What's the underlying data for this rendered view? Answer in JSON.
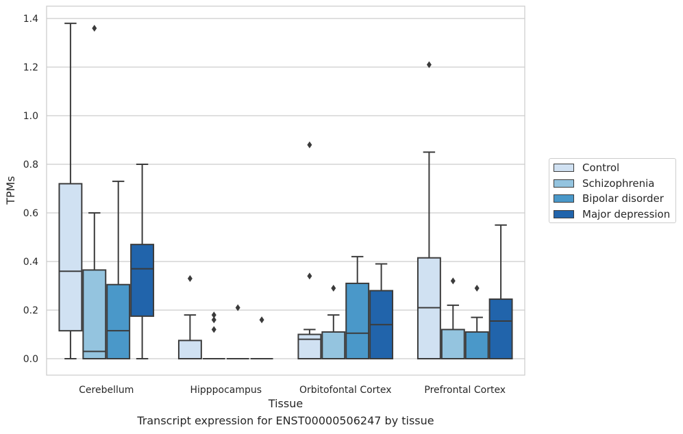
{
  "chart_data": {
    "type": "box",
    "caption": "Transcript expression for ENST00000506247 by tissue",
    "xlabel": "Tissue",
    "ylabel": "TPMs",
    "ylim": [
      -0.065,
      1.45
    ],
    "yticks": [
      "0.0",
      "0.2",
      "0.4",
      "0.6",
      "0.8",
      "1.0",
      "1.2",
      "1.4"
    ],
    "ytick_values": [
      0,
      0.2,
      0.4,
      0.6,
      0.8,
      1.0,
      1.2,
      1.4
    ],
    "grid": "horizontal",
    "legend_position": "right",
    "categories": [
      "Cerebellum",
      "Hipppocampus",
      "Orbitofontal Cortex",
      "Prefrontal Cortex"
    ],
    "series": [
      {
        "name": "Control",
        "color": "#d0e1f2",
        "boxes": [
          {
            "q1": 0.115,
            "median": 0.36,
            "q3": 0.72,
            "whislo": 0.0,
            "whishi": 1.38,
            "fliers": []
          },
          {
            "q1": 0.0,
            "median": 0.0,
            "q3": 0.075,
            "whislo": 0.0,
            "whishi": 0.18,
            "fliers": [
              0.33
            ]
          },
          {
            "q1": 0.0,
            "median": 0.08,
            "q3": 0.1,
            "whislo": 0.0,
            "whishi": 0.12,
            "fliers": [
              0.34,
              0.88
            ]
          },
          {
            "q1": 0.0,
            "median": 0.21,
            "q3": 0.415,
            "whislo": 0.0,
            "whishi": 0.85,
            "fliers": [
              1.21
            ]
          }
        ]
      },
      {
        "name": "Schizophrenia",
        "color": "#94c4df",
        "boxes": [
          {
            "q1": 0.0,
            "median": 0.03,
            "q3": 0.365,
            "whislo": 0.0,
            "whishi": 0.6,
            "fliers": [
              1.36
            ]
          },
          {
            "q1": 0.0,
            "median": 0.0,
            "q3": 0.0,
            "whislo": 0.0,
            "whishi": 0.0,
            "fliers": [
              0.12,
              0.16,
              0.18
            ]
          },
          {
            "q1": 0.0,
            "median": 0.0,
            "q3": 0.11,
            "whislo": 0.0,
            "whishi": 0.18,
            "fliers": [
              0.29
            ]
          },
          {
            "q1": 0.0,
            "median": 0.0,
            "q3": 0.12,
            "whislo": 0.0,
            "whishi": 0.22,
            "fliers": [
              0.32
            ]
          }
        ]
      },
      {
        "name": "Bipolar disorder",
        "color": "#4a98c9",
        "boxes": [
          {
            "q1": 0.0,
            "median": 0.115,
            "q3": 0.305,
            "whislo": 0.0,
            "whishi": 0.73,
            "fliers": []
          },
          {
            "q1": 0.0,
            "median": 0.0,
            "q3": 0.0,
            "whislo": 0.0,
            "whishi": 0.0,
            "fliers": [
              0.21
            ]
          },
          {
            "q1": 0.0,
            "median": 0.105,
            "q3": 0.31,
            "whislo": 0.0,
            "whishi": 0.42,
            "fliers": []
          },
          {
            "q1": 0.0,
            "median": 0.0,
            "q3": 0.11,
            "whislo": 0.0,
            "whishi": 0.17,
            "fliers": [
              0.29
            ]
          }
        ]
      },
      {
        "name": "Major depression",
        "color": "#2164ab",
        "boxes": [
          {
            "q1": 0.175,
            "median": 0.37,
            "q3": 0.47,
            "whislo": 0.0,
            "whishi": 0.8,
            "fliers": []
          },
          {
            "q1": 0.0,
            "median": 0.0,
            "q3": 0.0,
            "whislo": 0.0,
            "whishi": 0.0,
            "fliers": [
              0.16
            ]
          },
          {
            "q1": 0.0,
            "median": 0.14,
            "q3": 0.28,
            "whislo": 0.0,
            "whishi": 0.39,
            "fliers": []
          },
          {
            "q1": 0.0,
            "median": 0.155,
            "q3": 0.245,
            "whislo": 0.0,
            "whishi": 0.55,
            "fliers": []
          }
        ]
      }
    ]
  }
}
